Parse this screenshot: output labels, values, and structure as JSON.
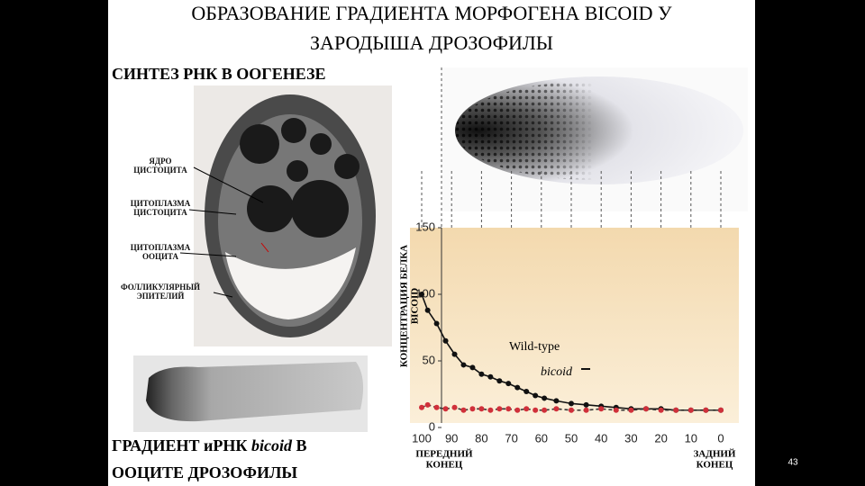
{
  "title_lines": [
    "ОБРАЗОВАНИЕ ГРАДИЕНТА МОРФОГЕНА BICOID У",
    "ЗАРОДЫША ДРОЗОФИЛЫ"
  ],
  "left_heading": "СИНТЕЗ РНК В ООГЕНЕЗЕ",
  "micrograph_labels": [
    [
      "ЯДРО",
      "ЦИСТОЦИТА"
    ],
    [
      "ЦИТОПЛАЗМА",
      "ЦИСТОЦИТА"
    ],
    [
      "ЦИТОПЛАЗМА",
      "ООЦИТА"
    ],
    [
      "ФОЛЛИКУЛЯРНЫЙ",
      "ЭПИТЕЛИЙ"
    ]
  ],
  "caption": {
    "line1_start": "ГРАДИЕНТ иРНК ",
    "line1_italic": "bicoid",
    "line1_end": " В",
    "line2": "ООЦИТЕ ДРОЗОФИЛЫ"
  },
  "page_number": "43",
  "chart_data": {
    "type": "line",
    "y_label": [
      "КОНЦЕНТРАЦИЯ БЕЛКА",
      "BICOID"
    ],
    "x_end_labels": [
      [
        "ПЕРЕДНИЙ",
        "КОНЕЦ"
      ],
      [
        "ЗАДНИЙ",
        "КОНЕЦ"
      ]
    ],
    "xlim": [
      100,
      0
    ],
    "ylim": [
      0,
      150
    ],
    "xticks": [
      100,
      90,
      80,
      70,
      60,
      50,
      40,
      30,
      20,
      10,
      0
    ],
    "yticks": [
      0,
      50,
      100,
      150
    ],
    "x": [
      100,
      98,
      95,
      92,
      89,
      86,
      83,
      80,
      77,
      74,
      71,
      68,
      65,
      62,
      59,
      55,
      50,
      45,
      40,
      35,
      30,
      25,
      20,
      15,
      10,
      5,
      0
    ],
    "series": [
      {
        "name": "Wild-type",
        "color": "#111111",
        "values": [
          100,
          88,
          78,
          65,
          55,
          47,
          45,
          40,
          38,
          35,
          33,
          30,
          27,
          24,
          22,
          20,
          18,
          17,
          16,
          15,
          14,
          14,
          14,
          13,
          13,
          13,
          13
        ]
      },
      {
        "name": "bicoid",
        "color": "#d0303a",
        "values": [
          15,
          17,
          15,
          14,
          15,
          13,
          14,
          14,
          13,
          14,
          14,
          13,
          14,
          13,
          13,
          14,
          13,
          13,
          14,
          13,
          13,
          14,
          13,
          13,
          13,
          13,
          13
        ]
      }
    ]
  }
}
